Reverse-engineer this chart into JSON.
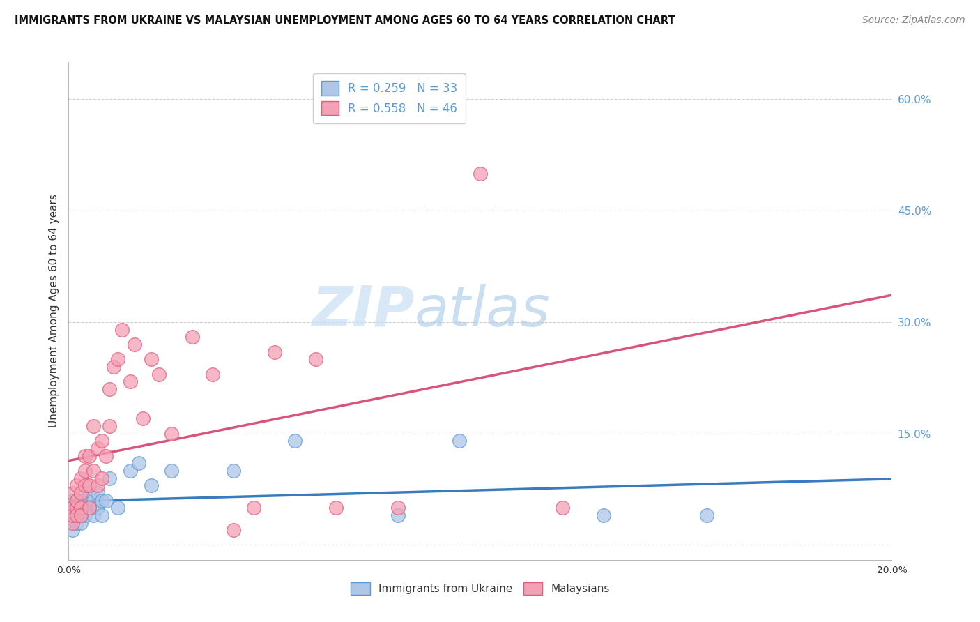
{
  "title": "IMMIGRANTS FROM UKRAINE VS MALAYSIAN UNEMPLOYMENT AMONG AGES 60 TO 64 YEARS CORRELATION CHART",
  "source": "Source: ZipAtlas.com",
  "ylabel": "Unemployment Among Ages 60 to 64 years",
  "xlim": [
    0.0,
    0.2
  ],
  "ylim": [
    -0.02,
    0.65
  ],
  "yticks": [
    0.0,
    0.15,
    0.3,
    0.45,
    0.6
  ],
  "ytick_labels": [
    "",
    "15.0%",
    "30.0%",
    "45.0%",
    "60.0%"
  ],
  "xticks": [
    0.0,
    0.05,
    0.1,
    0.15,
    0.2
  ],
  "xtick_labels": [
    "0.0%",
    "",
    "",
    "",
    "20.0%"
  ],
  "ukraine_color": "#aec6e8",
  "ukraine_edge": "#5b9bd5",
  "malaysia_color": "#f4a0b5",
  "malaysia_edge": "#e05c7a",
  "line_ukraine_color": "#3a7abf",
  "line_malaysia_color": "#d9547a",
  "legend_R_ukraine": "R = 0.259",
  "legend_N_ukraine": "N = 33",
  "legend_R_malaysia": "R = 0.558",
  "legend_N_malaysia": "N = 46",
  "watermark_zip": "ZIP",
  "watermark_atlas": "atlas",
  "grid_color": "#d0d0d0",
  "ukraine_x": [
    0.001,
    0.001,
    0.001,
    0.002,
    0.002,
    0.002,
    0.003,
    0.003,
    0.003,
    0.003,
    0.004,
    0.004,
    0.005,
    0.005,
    0.006,
    0.006,
    0.007,
    0.007,
    0.008,
    0.008,
    0.009,
    0.01,
    0.012,
    0.015,
    0.017,
    0.02,
    0.025,
    0.04,
    0.055,
    0.08,
    0.095,
    0.13,
    0.155
  ],
  "ukraine_y": [
    0.04,
    0.02,
    0.06,
    0.04,
    0.06,
    0.03,
    0.05,
    0.04,
    0.06,
    0.03,
    0.05,
    0.04,
    0.07,
    0.05,
    0.06,
    0.04,
    0.07,
    0.05,
    0.06,
    0.04,
    0.06,
    0.09,
    0.05,
    0.1,
    0.11,
    0.08,
    0.1,
    0.1,
    0.14,
    0.04,
    0.14,
    0.04,
    0.04
  ],
  "malaysia_x": [
    0.001,
    0.001,
    0.001,
    0.001,
    0.002,
    0.002,
    0.002,
    0.002,
    0.003,
    0.003,
    0.003,
    0.003,
    0.004,
    0.004,
    0.004,
    0.005,
    0.005,
    0.005,
    0.006,
    0.006,
    0.007,
    0.007,
    0.008,
    0.008,
    0.009,
    0.01,
    0.01,
    0.011,
    0.012,
    0.013,
    0.015,
    0.016,
    0.018,
    0.02,
    0.022,
    0.025,
    0.03,
    0.035,
    0.04,
    0.045,
    0.05,
    0.06,
    0.065,
    0.08,
    0.1,
    0.12
  ],
  "malaysia_y": [
    0.05,
    0.03,
    0.07,
    0.04,
    0.05,
    0.08,
    0.06,
    0.04,
    0.07,
    0.05,
    0.09,
    0.04,
    0.1,
    0.08,
    0.12,
    0.12,
    0.08,
    0.05,
    0.16,
    0.1,
    0.13,
    0.08,
    0.14,
    0.09,
    0.12,
    0.21,
    0.16,
    0.24,
    0.25,
    0.29,
    0.22,
    0.27,
    0.17,
    0.25,
    0.23,
    0.15,
    0.28,
    0.23,
    0.02,
    0.05,
    0.26,
    0.25,
    0.05,
    0.05,
    0.5,
    0.05
  ]
}
